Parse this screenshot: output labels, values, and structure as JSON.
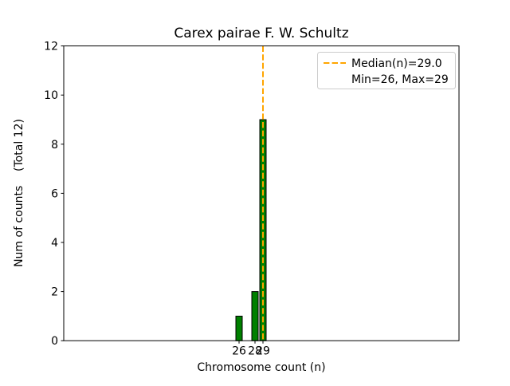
{
  "chart_data": {
    "type": "bar",
    "title": "Carex pairae F. W. Schultz",
    "xlabel": "Chromosome count (n)",
    "ylabel": "Num of counts    (Total 12)",
    "x": [
      26,
      28,
      29
    ],
    "values": [
      1,
      2,
      9
    ],
    "total": 12,
    "bar_color": "#008000",
    "bar_edge_color": "#000000",
    "bar_width_units": 0.8,
    "xlim": [
      4,
      53.6
    ],
    "ylim": [
      0,
      12
    ],
    "xticks": [
      26,
      28,
      29
    ],
    "yticks": [
      0,
      2,
      4,
      6,
      8,
      10,
      12
    ],
    "grid": false,
    "median_line": {
      "x": 29.0,
      "color": "#ffa500",
      "style": "dashed",
      "width": 2
    },
    "legend": {
      "position": "upper right",
      "entries": [
        {
          "label": "Median(n)=29.0",
          "handle": "dashed-orange-line"
        },
        {
          "label": "Min=26, Max=29",
          "handle": "none"
        }
      ]
    }
  }
}
